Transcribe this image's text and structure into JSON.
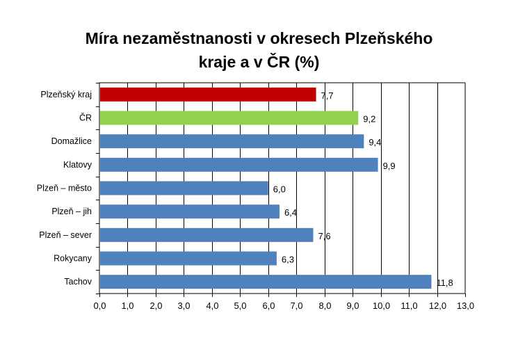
{
  "chart_data": {
    "type": "bar",
    "orientation": "horizontal",
    "title_lines": [
      "Míra nezaměstnanosti v okresech Plzeňského",
      "kraje a v ČR (%)"
    ],
    "categories": [
      "Plzeňský kraj",
      "ČR",
      "Domažlice",
      "Klatovy",
      "Plzeň – město",
      "Plzeň – jih",
      "Plzeň – sever",
      "Rokycany",
      "Tachov"
    ],
    "values": [
      7.7,
      9.2,
      9.4,
      9.9,
      6.0,
      6.4,
      7.6,
      6.3,
      11.8
    ],
    "value_labels": [
      "7,7",
      "9,2",
      "9,4",
      "9,9",
      "6,0",
      "6,4",
      "7,6",
      "6,3",
      "11,8"
    ],
    "bar_colors": [
      "#C00000",
      "#92D050",
      "#4F81BD",
      "#4F81BD",
      "#4F81BD",
      "#4F81BD",
      "#4F81BD",
      "#4F81BD",
      "#4F81BD"
    ],
    "xlim": [
      0,
      13
    ],
    "xticks": [
      "0,0",
      "1,0",
      "2,0",
      "3,0",
      "4,0",
      "5,0",
      "6,0",
      "7,0",
      "8,0",
      "9,0",
      "10,0",
      "11,0",
      "12,0",
      "13,0"
    ],
    "xlabel": "",
    "ylabel": "",
    "grid": true,
    "legend": "none"
  }
}
